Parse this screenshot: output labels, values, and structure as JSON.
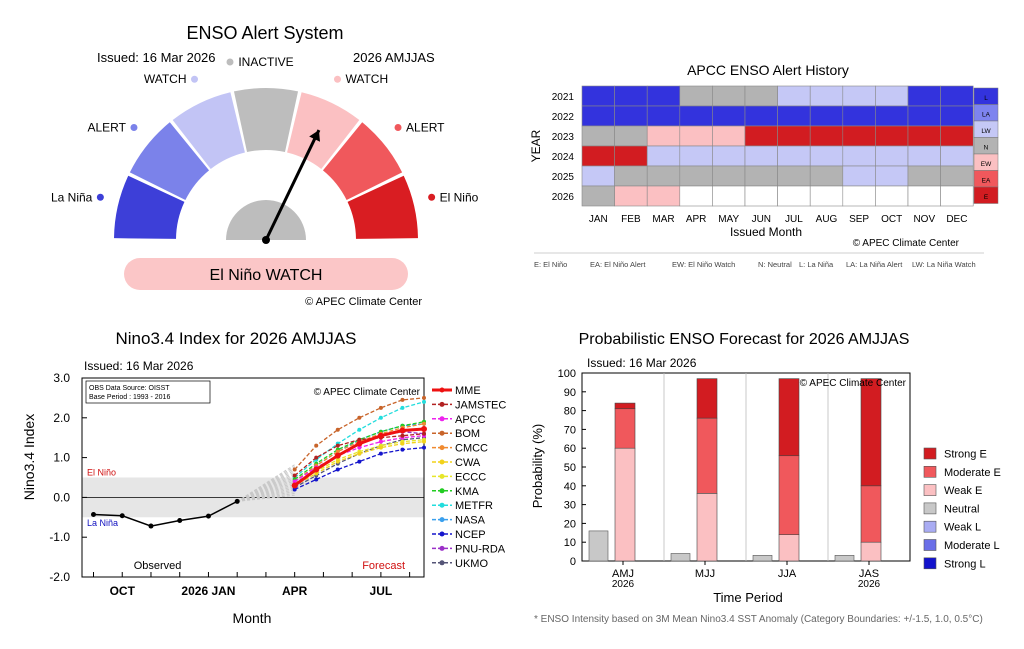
{
  "gauge": {
    "title": "ENSO Alert System",
    "issued": "Issued: 16 Mar 2026",
    "season": "2026 AMJJAS",
    "segments": [
      {
        "label": "La Niña",
        "color": "#3d3fd8"
      },
      {
        "label": "ALERT",
        "color": "#7b82ea"
      },
      {
        "label": "WATCH",
        "color": "#c2c4f5"
      },
      {
        "label": "INACTIVE",
        "color": "#bdbdbd"
      },
      {
        "label": "WATCH",
        "color": "#fbc0c2"
      },
      {
        "label": "ALERT",
        "color": "#f0585c"
      },
      {
        "label": "El Niño",
        "color": "#d91d22"
      }
    ],
    "status": "El Niño WATCH",
    "status_color": "#fbc6c7",
    "pointer_segment": "WATCH (El Niño)",
    "copyright": "© APEC Climate Center"
  },
  "history": {
    "title": "APCC ENSO Alert History",
    "ylabel": "YEAR",
    "xlabel": "Issued Month",
    "months": [
      "JAN",
      "FEB",
      "MAR",
      "APR",
      "MAY",
      "JUN",
      "JUL",
      "AUG",
      "SEP",
      "OCT",
      "NOV",
      "DEC"
    ],
    "years": [
      "2021",
      "2022",
      "2023",
      "2024",
      "2025",
      "2026"
    ],
    "cells": [
      [
        "L",
        "L",
        "L",
        "N",
        "N",
        "N",
        "LW",
        "LW",
        "LW",
        "LW",
        "L",
        "L"
      ],
      [
        "L",
        "L",
        "L",
        "L",
        "L",
        "L",
        "L",
        "L",
        "L",
        "L",
        "L",
        "L"
      ],
      [
        "N",
        "N",
        "EW",
        "EW",
        "EW",
        "E",
        "E",
        "E",
        "E",
        "E",
        "E",
        "E"
      ],
      [
        "E",
        "E",
        "LW",
        "LW",
        "LW",
        "LW",
        "LW",
        "LW",
        "LW",
        "LW",
        "LW",
        "LW"
      ],
      [
        "LW",
        "N",
        "N",
        "N",
        "N",
        "N",
        "N",
        "N",
        "LW",
        "LW",
        "N",
        "N"
      ],
      [
        "N",
        "EW",
        "EW",
        "",
        "",
        "",
        "",
        "",
        "",
        "",
        "",
        ""
      ]
    ],
    "legend": [
      {
        "code": "L",
        "color": "#3333dd"
      },
      {
        "code": "LA",
        "color": "#7e84ef"
      },
      {
        "code": "LW",
        "color": "#c5c8f6"
      },
      {
        "code": "N",
        "color": "#b3b3b3"
      },
      {
        "code": "EW",
        "color": "#fbc0c2"
      },
      {
        "code": "EA",
        "color": "#f0585c"
      },
      {
        "code": "E",
        "color": "#d21c21"
      }
    ],
    "copyright": "© APEC Climate Center",
    "footnote": [
      "E: El Niño",
      "EA: El Niño Alert",
      "EW: El Niño Watch",
      "N: Neutral",
      "L: La Niña",
      "LA: La Niña Alert",
      "LW: La Niña Watch"
    ]
  },
  "plume": {
    "title": "Nino3.4 Index for 2026 AMJJAS",
    "issued": "Issued: 16 Mar 2026",
    "ylabel": "Nino3.4 Index",
    "xlabel": "Month",
    "yticks": [
      "3.0",
      "2.0",
      "1.0",
      "0.0",
      "-1.0",
      "-2.0"
    ],
    "xticks": [
      "OCT",
      "2026 JAN",
      "APR",
      "JUL"
    ],
    "source_box": [
      "OBS Data Source: OISST",
      "Base Period : 1993 - 2016"
    ],
    "copyright": "© APEC Climate Center",
    "el_nino_label": "El Niño",
    "la_nina_label": "La Niña",
    "observed_label": "Observed",
    "forecast_label": "Forecast",
    "observed": [
      {
        "m": -6,
        "v": -0.43
      },
      {
        "m": -5,
        "v": -0.46
      },
      {
        "m": -4,
        "v": -0.72
      },
      {
        "m": -3,
        "v": -0.58
      },
      {
        "m": -2,
        "v": -0.47
      },
      {
        "m": -1,
        "v": -0.1
      }
    ],
    "models": [
      {
        "name": "MME",
        "color": "#ee1111",
        "values": [
          0.3,
          0.7,
          1.05,
          1.35,
          1.55,
          1.68,
          1.72
        ]
      },
      {
        "name": "JAMSTEC",
        "color": "#b22222",
        "values": [
          0.55,
          1.0,
          1.3,
          1.45,
          1.5,
          1.55,
          1.6
        ]
      },
      {
        "name": "APCC",
        "color": "#ee22ee",
        "values": [
          0.4,
          0.75,
          1.05,
          1.25,
          1.4,
          1.5,
          1.55
        ]
      },
      {
        "name": "BOM",
        "color": "#c8642a",
        "values": [
          0.7,
          1.3,
          1.7,
          2.0,
          2.25,
          2.45,
          2.5
        ]
      },
      {
        "name": "CMCC",
        "color": "#f08a30",
        "values": [
          0.4,
          0.8,
          1.15,
          1.4,
          1.6,
          1.75,
          1.85
        ]
      },
      {
        "name": "CWA",
        "color": "#f2d21a",
        "values": [
          0.3,
          0.6,
          0.9,
          1.1,
          1.25,
          1.35,
          1.4
        ]
      },
      {
        "name": "ECCC",
        "color": "#e6e62a",
        "values": [
          0.35,
          0.65,
          0.95,
          1.15,
          1.3,
          1.4,
          1.45
        ]
      },
      {
        "name": "KMA",
        "color": "#22cc22",
        "values": [
          0.45,
          0.85,
          1.2,
          1.45,
          1.65,
          1.8,
          1.9
        ]
      },
      {
        "name": "METFR",
        "color": "#22dddd",
        "values": [
          0.5,
          0.95,
          1.35,
          1.7,
          2.0,
          2.25,
          2.4
        ]
      },
      {
        "name": "NASA",
        "color": "#3aa0ee",
        "values": [
          0.4,
          0.8,
          1.15,
          1.45,
          1.65,
          1.8,
          1.85
        ]
      },
      {
        "name": "NCEP",
        "color": "#1515cc",
        "values": [
          0.2,
          0.45,
          0.7,
          0.9,
          1.1,
          1.2,
          1.25
        ]
      },
      {
        "name": "PNU-RDA",
        "color": "#9b30c8",
        "values": [
          0.35,
          0.7,
          1.05,
          1.35,
          1.55,
          1.65,
          1.6
        ]
      },
      {
        "name": "UKMO",
        "color": "#555577",
        "values": [
          0.25,
          0.55,
          0.85,
          1.1,
          1.3,
          1.45,
          1.5
        ]
      }
    ]
  },
  "prob": {
    "title": "Probabilistic ENSO Forecast for 2026 AMJJAS",
    "issued": "Issued: 16 Mar 2026",
    "ylabel": "Probability (%)",
    "xlabel": "Time Period",
    "copyright": "© APEC Climate Center",
    "yticks": [
      "0",
      "10",
      "20",
      "30",
      "40",
      "50",
      "60",
      "70",
      "80",
      "90",
      "100"
    ],
    "periods": [
      {
        "label": "AMJ",
        "sub": "2026",
        "neutral": 16,
        "weakE": 60,
        "modE": 21,
        "strongE": 3
      },
      {
        "label": "MJJ",
        "sub": "",
        "neutral": 4,
        "weakE": 36,
        "modE": 40,
        "strongE": 21
      },
      {
        "label": "JJA",
        "sub": "",
        "neutral": 3,
        "weakE": 14,
        "modE": 42,
        "strongE": 41
      },
      {
        "label": "JAS",
        "sub": "2026",
        "neutral": 3,
        "weakE": 10,
        "modE": 30,
        "strongE": 57
      }
    ],
    "legend": [
      {
        "name": "Strong E",
        "color": "#d21c21"
      },
      {
        "name": "Moderate E",
        "color": "#f0585c"
      },
      {
        "name": "Weak E",
        "color": "#fbc0c2"
      },
      {
        "name": "Neutral",
        "color": "#c8c8c8"
      },
      {
        "name": "Weak L",
        "color": "#a9acf3"
      },
      {
        "name": "Moderate L",
        "color": "#6a6ee8"
      },
      {
        "name": "Strong L",
        "color": "#1212cc"
      }
    ],
    "footnote": "* ENSO Intensity based on 3M Mean Nino3.4 SST Anomaly (Category Boundaries: +/-1.5, 1.0, 0.5°C)"
  }
}
